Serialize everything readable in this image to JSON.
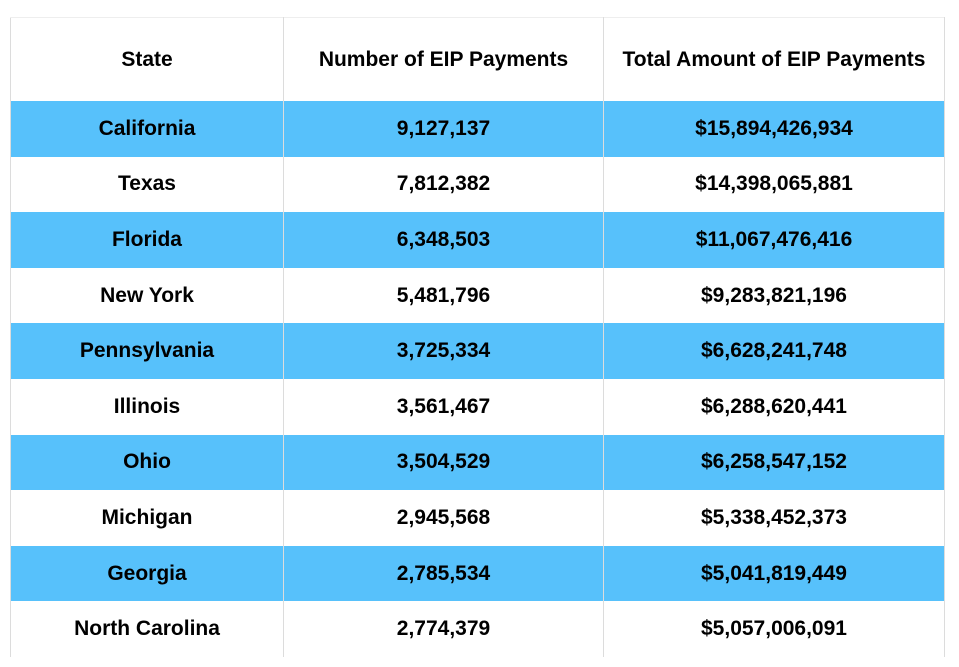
{
  "chart_data": {
    "type": "table",
    "columns": [
      "State",
      "Number of EIP Payments",
      "Total Amount of EIP Payments"
    ],
    "rows": [
      [
        "California",
        "9,127,137",
        "$15,894,426,934"
      ],
      [
        "Texas",
        "7,812,382",
        "$14,398,065,881"
      ],
      [
        "Florida",
        "6,348,503",
        "$11,067,476,416"
      ],
      [
        "New York",
        "5,481,796",
        "$9,283,821,196"
      ],
      [
        "Pennsylvania",
        "3,725,334",
        "$6,628,241,748"
      ],
      [
        "Illinois",
        "3,561,467",
        "$6,288,620,441"
      ],
      [
        "Ohio",
        "3,504,529",
        "$6,258,547,152"
      ],
      [
        "Michigan",
        "2,945,568",
        "$5,338,452,373"
      ],
      [
        "Georgia",
        "2,785,534",
        "$5,041,819,449"
      ],
      [
        "North Carolina",
        "2,774,379",
        "$5,057,006,091"
      ]
    ],
    "row_highlight_color": "#57c1fb"
  }
}
